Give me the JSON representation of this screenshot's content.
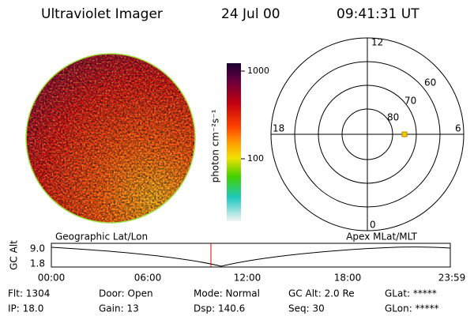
{
  "header": {
    "title": "Ultraviolet Imager",
    "date": "24 Jul 00",
    "time": "09:41:31 UT"
  },
  "colorbar": {
    "label": "photon cm⁻²s⁻¹",
    "ticks": [
      "1000",
      "100"
    ]
  },
  "polar": {
    "mlt_labels": [
      "12",
      "18",
      "6",
      "0"
    ],
    "mlat_labels": [
      "60",
      "70",
      "80"
    ]
  },
  "altitude_plot": {
    "left_title": "Geographic Lat/Lon",
    "right_title": "Apex MLat/MLT",
    "y_label": "GC Alt",
    "y_ticks": [
      "9.0",
      "1.8"
    ],
    "x_ticks": [
      "00:00",
      "06:00",
      "12:00",
      "18:00",
      "23:59"
    ]
  },
  "info": [
    [
      "Flt: 1304",
      "IP: 18.0"
    ],
    [
      "Door: Open",
      "Gain: 13"
    ],
    [
      "Mode: Normal",
      "Dsp: 140.6"
    ],
    [
      "GC Alt: 2.0 Re",
      "Seq: 30"
    ],
    [
      "GLat: *****",
      "GLon: *****"
    ]
  ]
}
